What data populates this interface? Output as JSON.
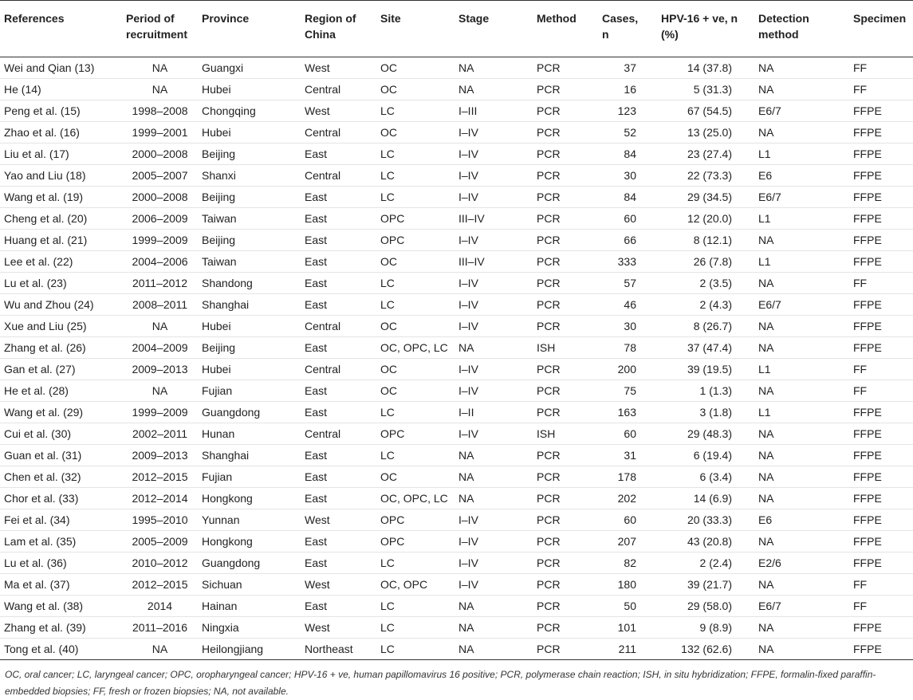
{
  "table": {
    "header": [
      "References",
      "Period of recruitment",
      "Province",
      "Region of China",
      "Site",
      "Stage",
      "Method",
      "Cases, n",
      "HPV-16 + ve, n (%)",
      "Detection method",
      "Specimen"
    ],
    "rows": [
      [
        "Wei and Qian (13)",
        "NA",
        "Guangxi",
        "West",
        "OC",
        "NA",
        "PCR",
        "37",
        "14 (37.8)",
        "NA",
        "FF"
      ],
      [
        "He (14)",
        "NA",
        "Hubei",
        "Central",
        "OC",
        "NA",
        "PCR",
        "16",
        "5 (31.3)",
        "NA",
        "FF"
      ],
      [
        "Peng et al. (15)",
        "1998–2008",
        "Chongqing",
        "West",
        "LC",
        "I–III",
        "PCR",
        "123",
        "67 (54.5)",
        "E6/7",
        "FFPE"
      ],
      [
        "Zhao et al. (16)",
        "1999–2001",
        "Hubei",
        "Central",
        "OC",
        "I–IV",
        "PCR",
        "52",
        "13 (25.0)",
        "NA",
        "FFPE"
      ],
      [
        "Liu et al. (17)",
        "2000–2008",
        "Beijing",
        "East",
        "LC",
        "I–IV",
        "PCR",
        "84",
        "23 (27.4)",
        "L1",
        "FFPE"
      ],
      [
        "Yao and Liu (18)",
        "2005–2007",
        "Shanxi",
        "Central",
        "LC",
        "I–IV",
        "PCR",
        "30",
        "22 (73.3)",
        "E6",
        "FFPE"
      ],
      [
        "Wang et al. (19)",
        "2000–2008",
        "Beijing",
        "East",
        "LC",
        "I–IV",
        "PCR",
        "84",
        "29 (34.5)",
        "E6/7",
        "FFPE"
      ],
      [
        "Cheng et al. (20)",
        "2006–2009",
        "Taiwan",
        "East",
        "OPC",
        "III–IV",
        "PCR",
        "60",
        "12 (20.0)",
        "L1",
        "FFPE"
      ],
      [
        "Huang et al. (21)",
        "1999–2009",
        "Beijing",
        "East",
        "OPC",
        "I–IV",
        "PCR",
        "66",
        "8 (12.1)",
        "NA",
        "FFPE"
      ],
      [
        "Lee et al. (22)",
        "2004–2006",
        "Taiwan",
        "East",
        "OC",
        "III–IV",
        "PCR",
        "333",
        "26 (7.8)",
        "L1",
        "FFPE"
      ],
      [
        "Lu et al. (23)",
        "2011–2012",
        "Shandong",
        "East",
        "LC",
        "I–IV",
        "PCR",
        "57",
        "2 (3.5)",
        "NA",
        "FF"
      ],
      [
        "Wu and Zhou (24)",
        "2008–2011",
        "Shanghai",
        "East",
        "LC",
        "I–IV",
        "PCR",
        "46",
        "2 (4.3)",
        "E6/7",
        "FFPE"
      ],
      [
        "Xue and Liu (25)",
        "NA",
        "Hubei",
        "Central",
        "OC",
        "I–IV",
        "PCR",
        "30",
        "8 (26.7)",
        "NA",
        "FFPE"
      ],
      [
        "Zhang et al. (26)",
        "2004–2009",
        "Beijing",
        "East",
        "OC, OPC, LC",
        "NA",
        "ISH",
        "78",
        "37 (47.4)",
        "NA",
        "FFPE"
      ],
      [
        "Gan et al. (27)",
        "2009–2013",
        "Hubei",
        "Central",
        "OC",
        "I–IV",
        "PCR",
        "200",
        "39 (19.5)",
        "L1",
        "FF"
      ],
      [
        "He et al. (28)",
        "NA",
        "Fujian",
        "East",
        "OC",
        "I–IV",
        "PCR",
        "75",
        "1 (1.3)",
        "NA",
        "FF"
      ],
      [
        "Wang et al. (29)",
        "1999–2009",
        "Guangdong",
        "East",
        "LC",
        "I–II",
        "PCR",
        "163",
        "3 (1.8)",
        "L1",
        "FFPE"
      ],
      [
        "Cui et al. (30)",
        "2002–2011",
        "Hunan",
        "Central",
        "OPC",
        "I–IV",
        "ISH",
        "60",
        "29 (48.3)",
        "NA",
        "FFPE"
      ],
      [
        "Guan et al. (31)",
        "2009–2013",
        "Shanghai",
        "East",
        "LC",
        "NA",
        "PCR",
        "31",
        "6 (19.4)",
        "NA",
        "FFPE"
      ],
      [
        "Chen et al. (32)",
        "2012–2015",
        "Fujian",
        "East",
        "OC",
        "NA",
        "PCR",
        "178",
        "6 (3.4)",
        "NA",
        "FFPE"
      ],
      [
        "Chor et al. (33)",
        "2012–2014",
        "Hongkong",
        "East",
        "OC, OPC, LC",
        "NA",
        "PCR",
        "202",
        "14 (6.9)",
        "NA",
        "FFPE"
      ],
      [
        "Fei et al. (34)",
        "1995–2010",
        "Yunnan",
        "West",
        "OPC",
        "I–IV",
        "PCR",
        "60",
        "20 (33.3)",
        "E6",
        "FFPE"
      ],
      [
        "Lam et al. (35)",
        "2005–2009",
        "Hongkong",
        "East",
        "OPC",
        "I–IV",
        "PCR",
        "207",
        "43 (20.8)",
        "NA",
        "FFPE"
      ],
      [
        "Lu et al. (36)",
        "2010–2012",
        "Guangdong",
        "East",
        "LC",
        "I–IV",
        "PCR",
        "82",
        "2 (2.4)",
        "E2/6",
        "FFPE"
      ],
      [
        "Ma et al. (37)",
        "2012–2015",
        "Sichuan",
        "West",
        "OC, OPC",
        "I–IV",
        "PCR",
        "180",
        "39 (21.7)",
        "NA",
        "FF"
      ],
      [
        "Wang et al. (38)",
        "2014",
        "Hainan",
        "East",
        "LC",
        "NA",
        "PCR",
        "50",
        "29 (58.0)",
        "E6/7",
        "FF"
      ],
      [
        "Zhang et al. (39)",
        "2011–2016",
        "Ningxia",
        "West",
        "LC",
        "NA",
        "PCR",
        "101",
        "9 (8.9)",
        "NA",
        "FFPE"
      ],
      [
        "Tong et al. (40)",
        "NA",
        "Heilongjiang",
        "Northeast",
        "LC",
        "NA",
        "PCR",
        "211",
        "132 (62.6)",
        "NA",
        "FFPE"
      ]
    ],
    "footnote": "OC, oral cancer; LC, laryngeal cancer; OPC, oropharyngeal cancer; HPV-16 + ve, human papillomavirus 16 positive; PCR, polymerase chain reaction; ISH, in situ hybridization; FFPE, formalin-fixed paraffin-embedded biopsies; FF, fresh or frozen biopsies; NA, not available."
  }
}
